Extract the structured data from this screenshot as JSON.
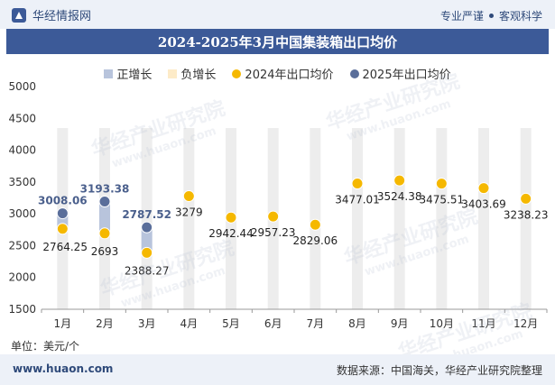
{
  "header": {
    "brand": "华经情报网",
    "tagline_left": "专业严谨",
    "tagline_right": "客观科学"
  },
  "title": "2024-2025年3月中国集装箱出口均价",
  "unit_label": "单位：美元/个",
  "footer": {
    "site": "www.huaon.com",
    "source": "数据来源：中国海关，华经产业研究院整理"
  },
  "watermark": {
    "text": "华经产业研究院",
    "url": "www.huaon.com"
  },
  "colors": {
    "header_bg": "#edf1f8",
    "title_bg": "#3c5a98",
    "positive": "#b8c4dc",
    "negative": "#fdebc8",
    "series_2024": "#f5b800",
    "series_2025": "#5a6e9a"
  },
  "chart_data": {
    "type": "scatter",
    "categories": [
      "1月",
      "2月",
      "3月",
      "4月",
      "5月",
      "6月",
      "7月",
      "8月",
      "9月",
      "10月",
      "11月",
      "12月"
    ],
    "ylim": [
      1500,
      5000
    ],
    "yticks": [
      1500,
      2000,
      2500,
      3000,
      3500,
      4000,
      4500,
      5000
    ],
    "legend": [
      "正增长",
      "负增长",
      "2024年出口均价",
      "2025年出口均价"
    ],
    "series": [
      {
        "name": "2024年出口均价",
        "values": [
          2764.25,
          2693,
          2388.27,
          3279,
          2942.44,
          2957.23,
          2829.06,
          3477.01,
          3524.38,
          3475.51,
          3403.69,
          3238.23
        ],
        "labels": [
          "2764.25",
          "2693",
          "2388.27",
          "3279",
          "2942.44",
          "2957.23",
          "2829.06",
          "3477.01",
          "3524.38",
          "3475.51",
          "3403.69",
          "3238.23"
        ]
      },
      {
        "name": "2025年出口均价",
        "values": [
          3008.06,
          3193.38,
          2787.52,
          null,
          null,
          null,
          null,
          null,
          null,
          null,
          null,
          null
        ],
        "labels": [
          "3008.06",
          "3193.38",
          "2787.52"
        ]
      }
    ],
    "growth": [
      "positive",
      "positive",
      "positive"
    ]
  }
}
